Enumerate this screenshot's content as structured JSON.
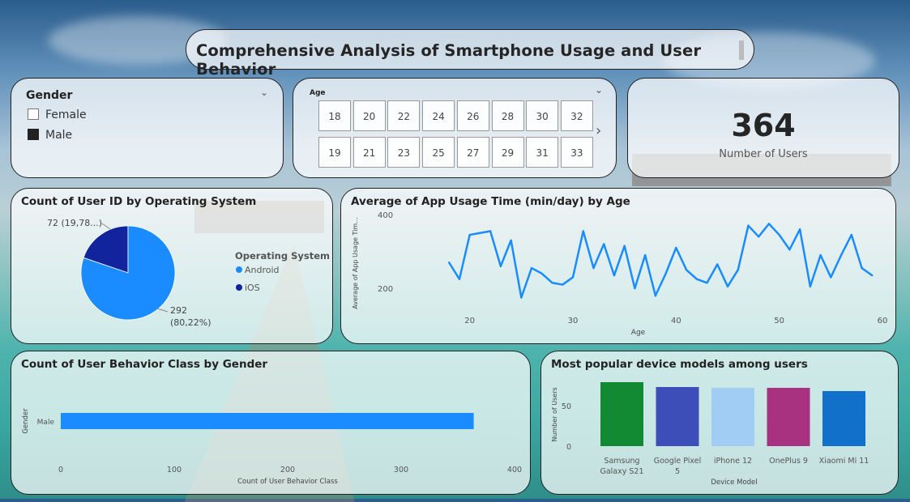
{
  "title": "Comprehensive Analysis of Smartphone Usage and User Behavior",
  "gender_slicer": {
    "title": "Gender",
    "options": [
      {
        "label": "Female",
        "selected": false
      },
      {
        "label": "Male",
        "selected": true
      }
    ]
  },
  "age_slicer": {
    "title": "Age",
    "values": [
      "18",
      "20",
      "22",
      "24",
      "26",
      "28",
      "30",
      "32",
      "19",
      "21",
      "23",
      "25",
      "27",
      "29",
      "31",
      "33"
    ]
  },
  "kpi": {
    "value": "364",
    "label": "Number of Users"
  },
  "chart_data": [
    {
      "type": "pie",
      "title": "Count of User ID by Operating System",
      "legend_title": "Operating System",
      "legend_position": "right",
      "categories": [
        "Android",
        "iOS"
      ],
      "values": [
        292,
        72
      ],
      "data_labels": [
        "292 (80,22%)",
        "72 (19,78...)"
      ],
      "colors": [
        "#1a8cff",
        "#12239e"
      ]
    },
    {
      "type": "line",
      "title": "Average of App Usage Time (min/day) by Age",
      "xlabel": "Age",
      "ylabel": "Average of App Usage Tim...",
      "xlim": [
        15,
        60
      ],
      "ylim": [
        130,
        400
      ],
      "xticks": [
        20,
        30,
        40,
        50,
        60
      ],
      "yticks": [
        200,
        400
      ],
      "color": "#1a8cff",
      "x": [
        18,
        19,
        20,
        21,
        22,
        23,
        24,
        25,
        26,
        27,
        28,
        29,
        30,
        31,
        32,
        33,
        34,
        35,
        36,
        37,
        38,
        39,
        40,
        41,
        42,
        43,
        44,
        45,
        46,
        47,
        48,
        49,
        50,
        51,
        52,
        53,
        54,
        55,
        56,
        57,
        58,
        59
      ],
      "y": [
        270,
        225,
        345,
        350,
        355,
        260,
        330,
        175,
        255,
        240,
        215,
        210,
        230,
        355,
        255,
        320,
        235,
        315,
        200,
        290,
        180,
        240,
        310,
        250,
        225,
        215,
        265,
        205,
        250,
        370,
        340,
        375,
        345,
        305,
        360,
        205,
        290,
        230,
        290,
        345,
        255,
        235
      ]
    },
    {
      "type": "bar",
      "orientation": "horizontal",
      "title": "Count of User Behavior Class by Gender",
      "xlabel": "Count of User Behavior Class",
      "ylabel": "Gender",
      "categories": [
        "Male"
      ],
      "values": [
        364
      ],
      "xlim": [
        0,
        400
      ],
      "xticks": [
        0,
        100,
        200,
        300,
        400
      ],
      "color": "#1a8cff"
    },
    {
      "type": "bar",
      "title": "Most popular device models among users",
      "xlabel": "Device Model",
      "ylabel": "Number of Users",
      "categories": [
        "Samsung Galaxy S21",
        "Google Pixel 5",
        "iPhone 12",
        "OnePlus 9",
        "Xiaomi Mi 11"
      ],
      "category_lines": [
        [
          "Samsung",
          "Galaxy S21"
        ],
        [
          "Google Pixel",
          "5"
        ],
        [
          "iPhone 12"
        ],
        [
          "OnePlus 9"
        ],
        [
          "Xiaomi Mi 11"
        ]
      ],
      "values": [
        79,
        73,
        72,
        72,
        68
      ],
      "colors": [
        "#118a33",
        "#3d4eb8",
        "#a1cdf4",
        "#a8327f",
        "#1170c9"
      ],
      "ylim": [
        0,
        80
      ],
      "yticks": [
        0,
        50
      ]
    }
  ]
}
